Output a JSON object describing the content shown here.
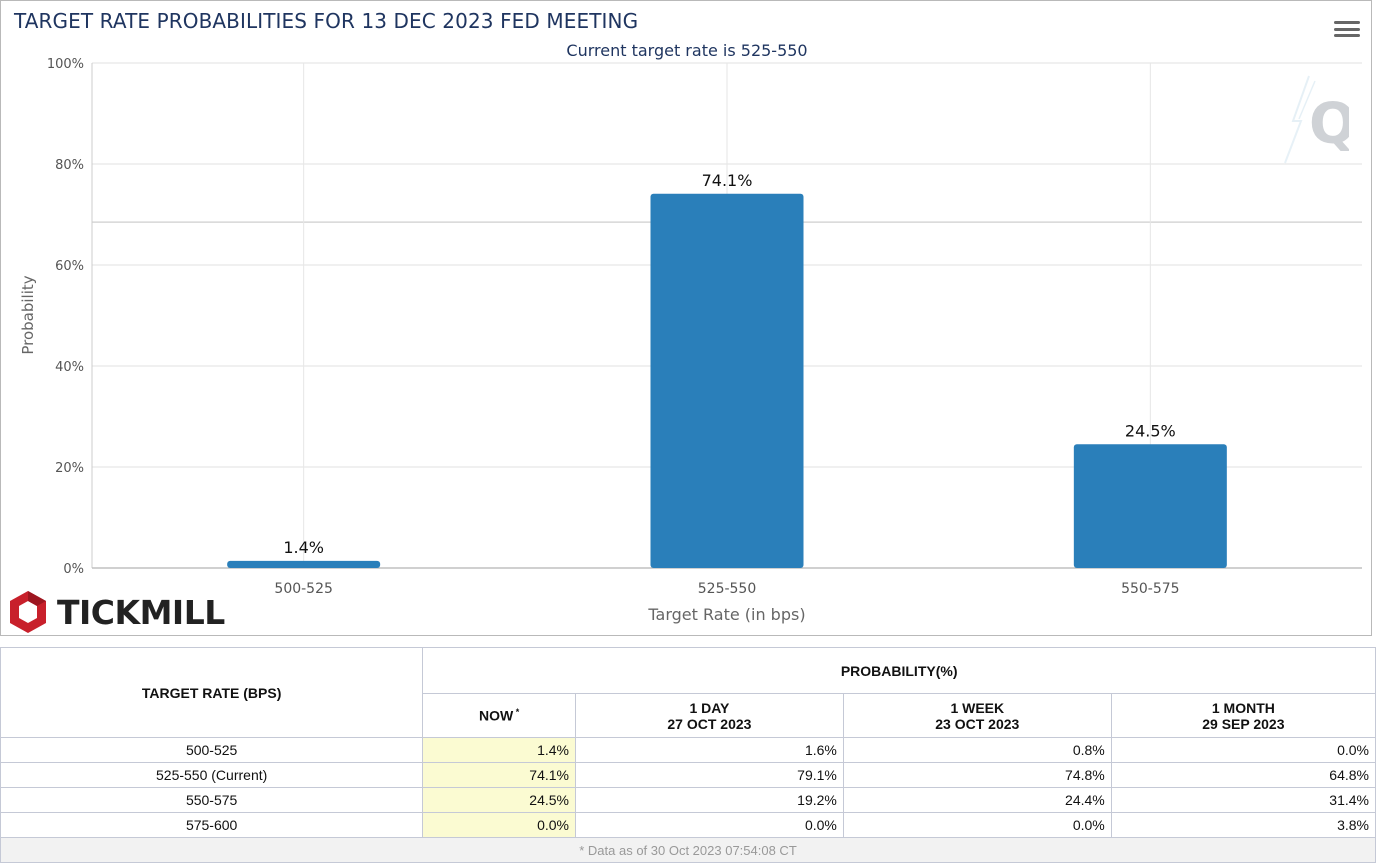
{
  "chart_data": {
    "type": "bar",
    "title": "TARGET RATE PROBABILITIES FOR 13 DEC 2023 FED MEETING",
    "subtitle": "Current target rate is 525-550",
    "xlabel": "Target Rate (in bps)",
    "ylabel": "Probability",
    "categories": [
      "500-525",
      "525-550",
      "550-575"
    ],
    "values": [
      1.4,
      74.1,
      24.5
    ],
    "data_labels": [
      "1.4%",
      "74.1%",
      "24.5%"
    ],
    "ylim": [
      0,
      100
    ],
    "yticks": [
      0,
      20,
      40,
      60,
      80,
      100
    ],
    "ytick_labels": [
      "0%",
      "20%",
      "40%",
      "60%",
      "80%",
      "100%"
    ],
    "bar_color": "#2a7fba",
    "grid": true
  },
  "branding": {
    "logo_text": "TICKMILL",
    "logo_color": "#c8202b"
  },
  "table": {
    "rate_header": "TARGET RATE (BPS)",
    "prob_header": "PROBABILITY(%)",
    "columns": [
      {
        "line1": "NOW",
        "line2": "",
        "star": "*"
      },
      {
        "line1": "1 DAY",
        "line2": "27 OCT 2023",
        "star": ""
      },
      {
        "line1": "1 WEEK",
        "line2": "23 OCT 2023",
        "star": ""
      },
      {
        "line1": "1 MONTH",
        "line2": "29 SEP 2023",
        "star": ""
      }
    ],
    "rows": [
      {
        "rate": "500-525",
        "values": [
          "1.4%",
          "1.6%",
          "0.8%",
          "0.0%"
        ]
      },
      {
        "rate": "525-550 (Current)",
        "values": [
          "74.1%",
          "79.1%",
          "74.8%",
          "64.8%"
        ]
      },
      {
        "rate": "550-575",
        "values": [
          "24.5%",
          "19.2%",
          "24.4%",
          "31.4%"
        ]
      },
      {
        "rate": "575-600",
        "values": [
          "0.0%",
          "0.0%",
          "0.0%",
          "3.8%"
        ]
      }
    ],
    "footnote": "* Data as of 30 Oct 2023 07:54:08 CT"
  }
}
